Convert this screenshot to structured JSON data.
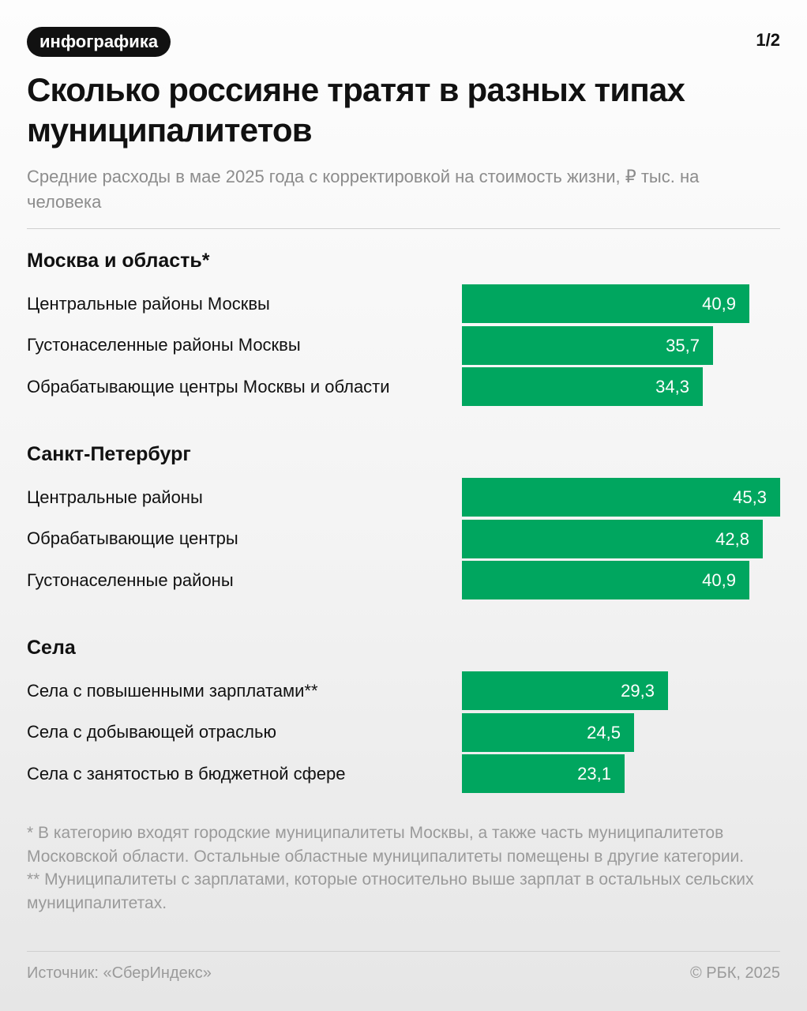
{
  "header": {
    "badge": "инфографика",
    "page_counter": "1/2",
    "title": "Сколько россияне тратят в разных типах муниципалитетов",
    "subtitle": "Средние расходы в мае 2025 года с корректировкой на стоимость жизни, ₽ тыс. на человека"
  },
  "colors": {
    "bar": "#00a65f",
    "bar_text": "#ffffff",
    "muted_text": "#8c8c8c"
  },
  "chart_data": {
    "type": "bar",
    "orientation": "horizontal",
    "unit": "₽ тыс. на человека",
    "xlim": [
      0,
      45.3
    ],
    "groups": [
      {
        "name": "Москва и область*",
        "categories": [
          "Центральные районы Москвы",
          "Густонаселенные районы Москвы",
          "Обрабатывающие центры Москвы и области"
        ],
        "values": [
          40.9,
          35.7,
          34.3
        ],
        "value_labels": [
          "40,9",
          "35,7",
          "34,3"
        ]
      },
      {
        "name": "Санкт-Петербург",
        "categories": [
          "Центральные районы",
          "Обрабатывающие центры",
          "Густонаселенные районы"
        ],
        "values": [
          45.3,
          42.8,
          40.9
        ],
        "value_labels": [
          "45,3",
          "42,8",
          "40,9"
        ]
      },
      {
        "name": "Села",
        "categories": [
          "Села с повышенными зарплатами**",
          "Села с добывающей отраслью",
          "Села с занятостью в бюджетной сфере"
        ],
        "values": [
          29.3,
          24.5,
          23.1
        ],
        "value_labels": [
          "29,3",
          "24,5",
          "23,1"
        ]
      }
    ]
  },
  "footnotes": {
    "note1": "* В категорию входят городские муниципалитеты Москвы, а также часть муниципалитетов Московской области. Остальные областные муниципалитеты помещены в другие категории.",
    "note2": "** Муниципалитеты с зарплатами, которые относительно выше зарплат в остальных сельских муниципалитетах."
  },
  "footer": {
    "source": "Источник: «СберИндекс»",
    "copyright": "© РБК, 2025"
  }
}
